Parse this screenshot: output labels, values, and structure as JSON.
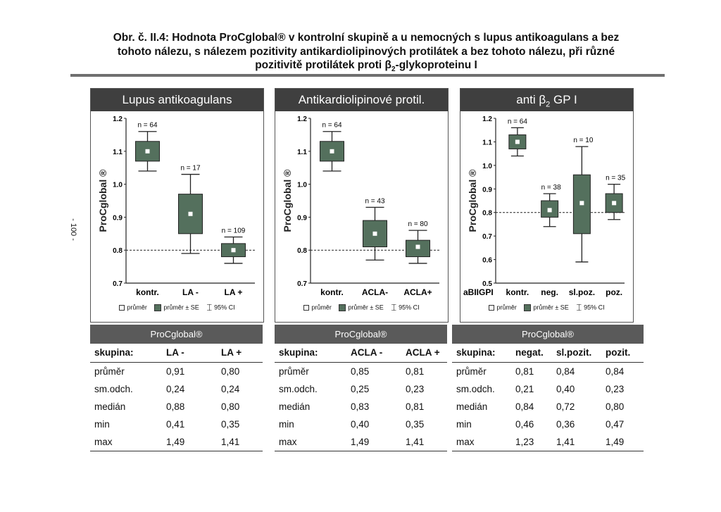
{
  "caption": {
    "line1": "Obr. č. II.4: Hodnota ProCglobal® v kontrolní skupině a u nemocných s lupus antikoagulans a bez",
    "line2": "tohoto nálezu, s nálezem pozitivity antikardiolipinových protilátek a bez tohoto nálezu, při různé",
    "line3_pre": "pozitivitě protilátek proti β",
    "line3_sub": "2",
    "line3_post": "-glykoproteinu I"
  },
  "page_number": "- 100 -",
  "legend": {
    "mean": "průměr",
    "se": "průměr ± SE",
    "ci": "95% CI"
  },
  "colors": {
    "box_fill": "#54705d",
    "header_bg": "#3f3f3f",
    "table_header_bg": "#5a5a5a"
  },
  "chart_data": [
    {
      "type": "box",
      "title": "Lupus antikoagulans",
      "ylabel": "ProCglobal ®",
      "ylim": [
        0.7,
        1.2
      ],
      "yticks": [
        "0.7",
        "0.8",
        "0.9",
        "1.0",
        "1.1",
        "1.2"
      ],
      "reference_line": 0.8,
      "groups": [
        {
          "label": "kontr.",
          "n_label": "n = 64",
          "mean": 1.1,
          "se_low": 1.07,
          "se_high": 1.13,
          "ci_low": 1.04,
          "ci_high": 1.16
        },
        {
          "label": "LA -",
          "n_label": "n = 17",
          "mean": 0.91,
          "se_low": 0.85,
          "se_high": 0.97,
          "ci_low": 0.79,
          "ci_high": 1.03
        },
        {
          "label": "LA +",
          "n_label": "n = 109",
          "mean": 0.8,
          "se_low": 0.78,
          "se_high": 0.82,
          "ci_low": 0.76,
          "ci_high": 0.84
        }
      ]
    },
    {
      "type": "box",
      "title": "Antikardiolipinové protil.",
      "ylabel": "ProCglobal ®",
      "ylim": [
        0.7,
        1.2
      ],
      "yticks": [
        "0.7",
        "0.8",
        "0.9",
        "1.0",
        "1.1",
        "1.2"
      ],
      "reference_line": 0.8,
      "groups": [
        {
          "label": "kontr.",
          "n_label": "n = 64",
          "mean": 1.1,
          "se_low": 1.07,
          "se_high": 1.13,
          "ci_low": 1.04,
          "ci_high": 1.16
        },
        {
          "label": "ACLA-",
          "n_label": "n = 43",
          "mean": 0.85,
          "se_low": 0.81,
          "se_high": 0.89,
          "ci_low": 0.77,
          "ci_high": 0.93
        },
        {
          "label": "ACLA+",
          "n_label": "n = 80",
          "mean": 0.81,
          "se_low": 0.78,
          "se_high": 0.83,
          "ci_low": 0.76,
          "ci_high": 0.86
        }
      ]
    },
    {
      "type": "box",
      "title_pre": "anti ",
      "title_beta": "β",
      "title_sub": "2",
      "title_post": " GP I",
      "ylabel": "ProCglobal ®",
      "ylim": [
        0.5,
        1.2
      ],
      "yticks": [
        "0.5",
        "0.6",
        "0.7",
        "0.8",
        "0.9",
        "1.0",
        "1.1",
        "1.2"
      ],
      "reference_line": 0.8,
      "first_label": "aBIIGPI",
      "groups": [
        {
          "label": "kontr.",
          "n_label": "n = 64",
          "mean": 1.1,
          "se_low": 1.07,
          "se_high": 1.13,
          "ci_low": 1.04,
          "ci_high": 1.16
        },
        {
          "label": "neg.",
          "n_label": "n = 38",
          "mean": 0.81,
          "se_low": 0.78,
          "se_high": 0.85,
          "ci_low": 0.74,
          "ci_high": 0.88
        },
        {
          "label": "sl.poz.",
          "n_label": "n = 10",
          "mean": 0.84,
          "se_low": 0.71,
          "se_high": 0.96,
          "ci_low": 0.59,
          "ci_high": 1.08
        },
        {
          "label": "poz.",
          "n_label": "n = 35",
          "mean": 0.84,
          "se_low": 0.8,
          "se_high": 0.88,
          "ci_low": 0.77,
          "ci_high": 0.92
        }
      ]
    }
  ],
  "tables": [
    {
      "title": "ProCglobal®",
      "headers": [
        "skupina:",
        "LA -",
        "LA +"
      ],
      "rows": [
        [
          "průměr",
          "0,91",
          "0,80"
        ],
        [
          "sm.odch.",
          "0,24",
          "0,24"
        ],
        [
          "medián",
          "0,88",
          "0,80"
        ],
        [
          "min",
          "0,41",
          "0,35"
        ],
        [
          "max",
          "1,49",
          "1,41"
        ]
      ]
    },
    {
      "title": "ProCglobal®",
      "headers": [
        "skupina:",
        "ACLA -",
        "ACLA +"
      ],
      "rows": [
        [
          "průměr",
          "0,85",
          "0,81"
        ],
        [
          "sm.odch.",
          "0,25",
          "0,23"
        ],
        [
          "medián",
          "0,83",
          "0,81"
        ],
        [
          "min",
          "0,40",
          "0,35"
        ],
        [
          "max",
          "1,49",
          "1,41"
        ]
      ]
    },
    {
      "title": "ProCglobal®",
      "headers": [
        "skupina:",
        "negat.",
        "sl.pozit.",
        "pozit."
      ],
      "rows": [
        [
          "průměr",
          "0,81",
          "0,84",
          "0,84"
        ],
        [
          "sm.odch.",
          "0,21",
          "0,40",
          "0,23"
        ],
        [
          "medián",
          "0,84",
          "0,72",
          "0,80"
        ],
        [
          "min",
          "0,46",
          "0,36",
          "0,47"
        ],
        [
          "max",
          "1,23",
          "1,41",
          "1,49"
        ]
      ]
    }
  ]
}
